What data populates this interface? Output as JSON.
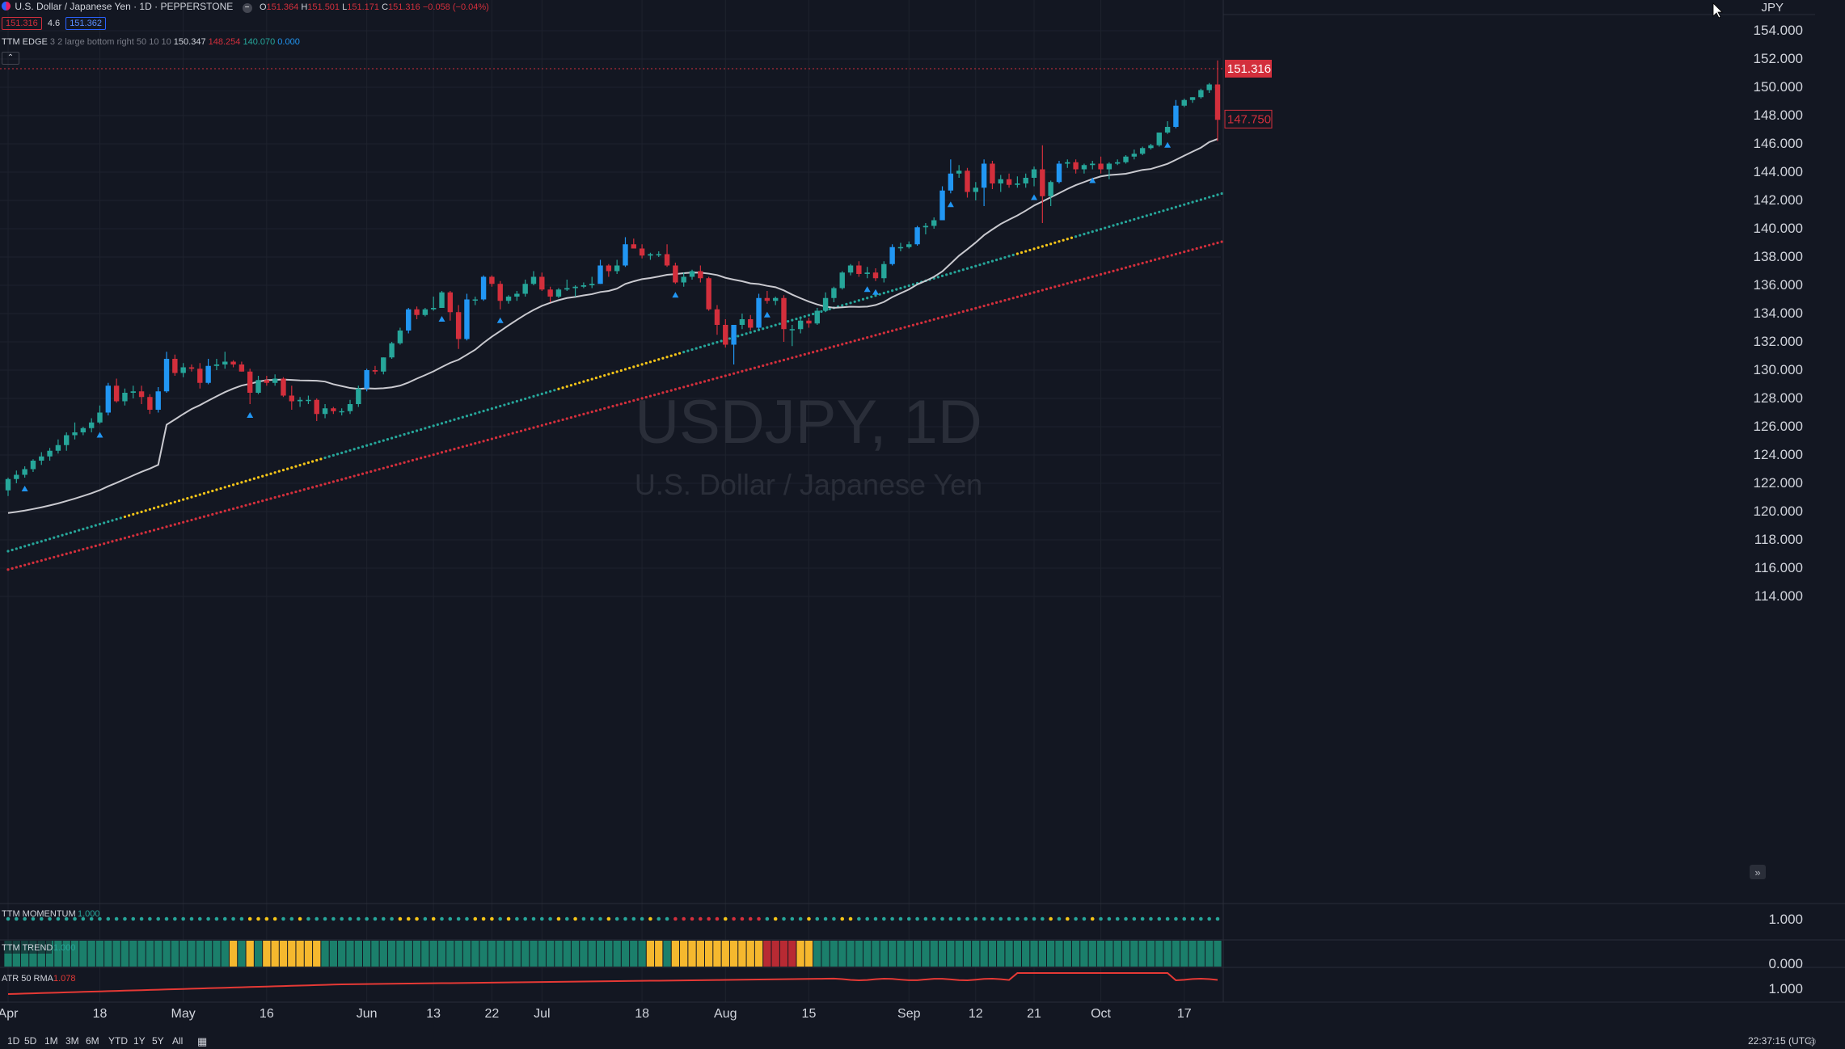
{
  "header": {
    "symbol_title": "U.S. Dollar / Japanese Yen · 1D · PEPPERSTONE",
    "ohlc": {
      "o_label": "O",
      "o": "151.364",
      "h_label": "H",
      "h": "151.501",
      "l_label": "L",
      "l": "151.171",
      "c_label": "C",
      "c": "151.316",
      "change": "−0.058 (−0.04%)"
    },
    "bid": "151.316",
    "spread": "4.6",
    "ask": "151.362",
    "edge_name": "TTM EDGE",
    "edge_params": "3 2 large bottom right 50 10 10",
    "edge_values": [
      "150.347",
      "148.254",
      "140.070",
      "0.000"
    ]
  },
  "watermark": {
    "ticker": "USDJPY, 1D",
    "name": "U.S. Dollar / Japanese Yen"
  },
  "currency": "JPY",
  "price_axis": {
    "ticks": [
      "154.000",
      "152.000",
      "150.000",
      "148.000",
      "146.000",
      "144.000",
      "142.000",
      "140.000",
      "138.000",
      "136.000",
      "134.000",
      "132.000",
      "130.000",
      "128.000",
      "126.000",
      "124.000",
      "122.000",
      "120.000",
      "118.000",
      "116.000",
      "114.000"
    ],
    "last_price": "151.316",
    "second_price": "147.750"
  },
  "indicators": {
    "momentum": {
      "name": "TTM MOMENTUM",
      "value": "1.000",
      "axis": "1.000"
    },
    "trend": {
      "name": "TTM TREND",
      "value": "1.000",
      "axis": "0.000"
    },
    "atr": {
      "name": "ATR 50 RMA",
      "value": "1.078",
      "axis": "1.000"
    }
  },
  "time_axis": [
    "Apr",
    "18",
    "May",
    "16",
    "Jun",
    "13",
    "22",
    "Jul",
    "18",
    "Aug",
    "15",
    "Sep",
    "12",
    "21",
    "Oct",
    "17"
  ],
  "bottom_bar": {
    "timeframes": [
      "1D",
      "5D",
      "1M",
      "3M",
      "6M",
      "YTD",
      "1Y",
      "5Y",
      "All"
    ],
    "clock": "22:37:15 (UTC)"
  },
  "colors": {
    "bg": "#131722",
    "up": "#26a69a",
    "down": "#d32f3c",
    "blue": "#2196f3",
    "yellow": "#f5c518",
    "ma": "#c9c9cf"
  },
  "chart_data": {
    "type": "candlestick",
    "symbol": "USDJPY",
    "ylim": [
      113,
      155.5
    ],
    "points": [
      {
        "d": "Apr 1",
        "o": 121.5,
        "h": 122.4,
        "l": 121.1,
        "c": 122.3
      },
      {
        "d": "Apr 4",
        "o": 122.3,
        "h": 122.9,
        "l": 122.0,
        "c": 122.6
      },
      {
        "d": "Apr 5",
        "o": 122.6,
        "h": 123.2,
        "l": 122.4,
        "c": 123.0
      },
      {
        "d": "Apr 6",
        "o": 123.0,
        "h": 123.7,
        "l": 122.8,
        "c": 123.6
      },
      {
        "d": "Apr 7",
        "o": 123.6,
        "h": 124.2,
        "l": 123.3,
        "c": 123.9
      },
      {
        "d": "Apr 8",
        "o": 123.9,
        "h": 124.5,
        "l": 123.6,
        "c": 124.3
      },
      {
        "d": "Apr 11",
        "o": 124.3,
        "h": 125.1,
        "l": 124.1,
        "c": 124.7
      },
      {
        "d": "Apr 12",
        "o": 124.7,
        "h": 125.6,
        "l": 124.3,
        "c": 125.4
      },
      {
        "d": "Apr 13",
        "o": 125.4,
        "h": 126.3,
        "l": 125.1,
        "c": 125.6
      },
      {
        "d": "Apr 14",
        "o": 125.6,
        "h": 126.0,
        "l": 125.4,
        "c": 125.9
      },
      {
        "d": "Apr 15",
        "o": 125.9,
        "h": 126.6,
        "l": 125.6,
        "c": 126.3
      },
      {
        "d": "Apr 18",
        "o": 126.3,
        "h": 127.5,
        "l": 126.2,
        "c": 127.0
      },
      {
        "d": "Apr 19",
        "o": 127.0,
        "h": 129.1,
        "l": 126.8,
        "c": 128.9
      },
      {
        "d": "Apr 20",
        "o": 128.9,
        "h": 129.4,
        "l": 127.7,
        "c": 127.8
      },
      {
        "d": "Apr 21",
        "o": 127.8,
        "h": 128.7,
        "l": 127.5,
        "c": 128.4
      },
      {
        "d": "Apr 22",
        "o": 128.4,
        "h": 128.9,
        "l": 128.0,
        "c": 128.5
      },
      {
        "d": "Apr 25",
        "o": 128.5,
        "h": 128.9,
        "l": 127.6,
        "c": 128.1
      },
      {
        "d": "Apr 26",
        "o": 128.1,
        "h": 128.3,
        "l": 126.9,
        "c": 127.2
      },
      {
        "d": "Apr 27",
        "o": 127.2,
        "h": 128.8,
        "l": 127.0,
        "c": 128.5
      },
      {
        "d": "Apr 28",
        "o": 128.5,
        "h": 131.3,
        "l": 128.4,
        "c": 130.8
      },
      {
        "d": "Apr 29",
        "o": 130.8,
        "h": 131.1,
        "l": 129.6,
        "c": 129.8
      },
      {
        "d": "May 2",
        "o": 129.8,
        "h": 130.5,
        "l": 129.5,
        "c": 130.2
      },
      {
        "d": "May 3",
        "o": 130.2,
        "h": 130.4,
        "l": 129.9,
        "c": 130.1
      },
      {
        "d": "May 4",
        "o": 130.1,
        "h": 130.5,
        "l": 128.7,
        "c": 129.1
      },
      {
        "d": "May 5",
        "o": 129.1,
        "h": 130.8,
        "l": 129.0,
        "c": 130.3
      },
      {
        "d": "May 6",
        "o": 130.3,
        "h": 130.8,
        "l": 130.0,
        "c": 130.4
      },
      {
        "d": "May 9",
        "o": 130.4,
        "h": 131.3,
        "l": 130.1,
        "c": 130.6
      },
      {
        "d": "May 10",
        "o": 130.6,
        "h": 130.7,
        "l": 130.2,
        "c": 130.4
      },
      {
        "d": "May 11",
        "o": 130.4,
        "h": 130.6,
        "l": 129.9,
        "c": 129.9
      },
      {
        "d": "May 12",
        "o": 129.9,
        "h": 130.1,
        "l": 127.6,
        "c": 128.4
      },
      {
        "d": "May 13",
        "o": 128.4,
        "h": 129.6,
        "l": 128.3,
        "c": 129.3
      },
      {
        "d": "May 16",
        "o": 129.3,
        "h": 129.6,
        "l": 128.9,
        "c": 129.1
      },
      {
        "d": "May 17",
        "o": 129.1,
        "h": 129.7,
        "l": 128.9,
        "c": 129.4
      },
      {
        "d": "May 18",
        "o": 129.4,
        "h": 129.5,
        "l": 128.1,
        "c": 128.2
      },
      {
        "d": "May 19",
        "o": 128.2,
        "h": 128.9,
        "l": 127.2,
        "c": 127.8
      },
      {
        "d": "May 20",
        "o": 127.8,
        "h": 128.1,
        "l": 127.4,
        "c": 127.9
      },
      {
        "d": "May 23",
        "o": 127.9,
        "h": 128.2,
        "l": 127.6,
        "c": 127.9
      },
      {
        "d": "May 24",
        "o": 127.9,
        "h": 128.0,
        "l": 126.4,
        "c": 126.9
      },
      {
        "d": "May 25",
        "o": 126.9,
        "h": 127.6,
        "l": 126.6,
        "c": 127.3
      },
      {
        "d": "May 26",
        "o": 127.3,
        "h": 127.4,
        "l": 126.9,
        "c": 127.1
      },
      {
        "d": "May 27",
        "o": 127.1,
        "h": 127.3,
        "l": 126.8,
        "c": 127.1
      },
      {
        "d": "May 30",
        "o": 127.1,
        "h": 127.9,
        "l": 126.9,
        "c": 127.6
      },
      {
        "d": "May 31",
        "o": 127.6,
        "h": 128.9,
        "l": 127.4,
        "c": 128.7
      },
      {
        "d": "Jun 1",
        "o": 128.7,
        "h": 130.1,
        "l": 128.5,
        "c": 130.0
      },
      {
        "d": "Jun 2",
        "o": 130.0,
        "h": 130.3,
        "l": 129.7,
        "c": 129.9
      },
      {
        "d": "Jun 3",
        "o": 129.9,
        "h": 130.9,
        "l": 129.7,
        "c": 130.9
      },
      {
        "d": "Jun 6",
        "o": 130.9,
        "h": 132.0,
        "l": 130.8,
        "c": 131.9
      },
      {
        "d": "Jun 7",
        "o": 131.9,
        "h": 133.0,
        "l": 131.8,
        "c": 132.8
      },
      {
        "d": "Jun 8",
        "o": 132.8,
        "h": 134.4,
        "l": 132.6,
        "c": 134.3
      },
      {
        "d": "Jun 9",
        "o": 134.3,
        "h": 134.5,
        "l": 133.6,
        "c": 133.9
      },
      {
        "d": "Jun 10",
        "o": 133.9,
        "h": 134.4,
        "l": 133.8,
        "c": 134.3
      },
      {
        "d": "Jun 13",
        "o": 134.3,
        "h": 135.2,
        "l": 134.2,
        "c": 134.4
      },
      {
        "d": "Jun 14",
        "o": 134.4,
        "h": 135.6,
        "l": 134.4,
        "c": 135.5
      },
      {
        "d": "Jun 15",
        "o": 135.5,
        "h": 135.6,
        "l": 133.5,
        "c": 134.1
      },
      {
        "d": "Jun 16",
        "o": 134.1,
        "h": 134.6,
        "l": 131.5,
        "c": 132.2
      },
      {
        "d": "Jun 17",
        "o": 132.2,
        "h": 135.4,
        "l": 132.1,
        "c": 135.0
      },
      {
        "d": "Jun 20",
        "o": 135.0,
        "h": 135.2,
        "l": 134.6,
        "c": 135.0
      },
      {
        "d": "Jun 21",
        "o": 135.0,
        "h": 136.7,
        "l": 134.9,
        "c": 136.6
      },
      {
        "d": "Jun 22",
        "o": 136.6,
        "h": 136.7,
        "l": 135.9,
        "c": 136.1
      },
      {
        "d": "Jun 23",
        "o": 136.1,
        "h": 136.3,
        "l": 134.3,
        "c": 134.9
      },
      {
        "d": "Jun 24",
        "o": 134.9,
        "h": 135.3,
        "l": 134.7,
        "c": 135.2
      },
      {
        "d": "Jun 27",
        "o": 135.2,
        "h": 135.6,
        "l": 134.9,
        "c": 135.4
      },
      {
        "d": "Jun 28",
        "o": 135.4,
        "h": 136.4,
        "l": 135.2,
        "c": 136.1
      },
      {
        "d": "Jun 29",
        "o": 136.1,
        "h": 137.0,
        "l": 136.0,
        "c": 136.6
      },
      {
        "d": "Jun 30",
        "o": 136.6,
        "h": 136.9,
        "l": 135.6,
        "c": 135.7
      },
      {
        "d": "Jul 1",
        "o": 135.7,
        "h": 135.9,
        "l": 134.8,
        "c": 135.2
      },
      {
        "d": "Jul 4",
        "o": 135.2,
        "h": 135.8,
        "l": 135.1,
        "c": 135.7
      },
      {
        "d": "Jul 5",
        "o": 135.7,
        "h": 136.4,
        "l": 135.6,
        "c": 135.8
      },
      {
        "d": "Jul 6",
        "o": 135.8,
        "h": 136.0,
        "l": 135.2,
        "c": 135.9
      },
      {
        "d": "Jul 7",
        "o": 135.9,
        "h": 136.2,
        "l": 135.8,
        "c": 136.0
      },
      {
        "d": "Jul 8",
        "o": 136.0,
        "h": 136.6,
        "l": 135.8,
        "c": 136.1
      },
      {
        "d": "Jul 11",
        "o": 136.1,
        "h": 137.8,
        "l": 136.1,
        "c": 137.4
      },
      {
        "d": "Jul 12",
        "o": 137.4,
        "h": 137.5,
        "l": 136.6,
        "c": 137.0
      },
      {
        "d": "Jul 13",
        "o": 137.0,
        "h": 137.8,
        "l": 136.8,
        "c": 137.4
      },
      {
        "d": "Jul 14",
        "o": 137.4,
        "h": 139.4,
        "l": 137.3,
        "c": 138.9
      },
      {
        "d": "Jul 15",
        "o": 138.9,
        "h": 139.3,
        "l": 138.6,
        "c": 138.6
      },
      {
        "d": "Jul 18",
        "o": 138.6,
        "h": 138.9,
        "l": 137.9,
        "c": 138.1
      },
      {
        "d": "Jul 19",
        "o": 138.1,
        "h": 138.3,
        "l": 137.8,
        "c": 138.2
      },
      {
        "d": "Jul 20",
        "o": 138.2,
        "h": 138.4,
        "l": 138.0,
        "c": 138.2
      },
      {
        "d": "Jul 21",
        "o": 138.2,
        "h": 138.9,
        "l": 137.3,
        "c": 137.4
      },
      {
        "d": "Jul 22",
        "o": 137.4,
        "h": 137.6,
        "l": 136.1,
        "c": 136.2
      },
      {
        "d": "Jul 25",
        "o": 136.2,
        "h": 136.9,
        "l": 135.9,
        "c": 136.6
      },
      {
        "d": "Jul 26",
        "o": 136.6,
        "h": 137.1,
        "l": 136.4,
        "c": 137.0
      },
      {
        "d": "Jul 27",
        "o": 137.0,
        "h": 137.4,
        "l": 136.2,
        "c": 136.5
      },
      {
        "d": "Jul 28",
        "o": 136.5,
        "h": 136.6,
        "l": 134.2,
        "c": 134.3
      },
      {
        "d": "Jul 29",
        "o": 134.3,
        "h": 134.6,
        "l": 132.5,
        "c": 133.2
      },
      {
        "d": "Aug 1",
        "o": 133.2,
        "h": 133.6,
        "l": 131.6,
        "c": 131.8
      },
      {
        "d": "Aug 2",
        "o": 131.8,
        "h": 133.2,
        "l": 130.4,
        "c": 133.2
      },
      {
        "d": "Aug 3",
        "o": 133.2,
        "h": 134.0,
        "l": 132.9,
        "c": 133.6
      },
      {
        "d": "Aug 4",
        "o": 133.6,
        "h": 133.9,
        "l": 132.8,
        "c": 133.0
      },
      {
        "d": "Aug 5",
        "o": 133.0,
        "h": 135.4,
        "l": 132.9,
        "c": 135.1
      },
      {
        "d": "Aug 8",
        "o": 135.1,
        "h": 135.6,
        "l": 134.7,
        "c": 134.9
      },
      {
        "d": "Aug 9",
        "o": 134.9,
        "h": 135.2,
        "l": 134.6,
        "c": 135.1
      },
      {
        "d": "Aug 10",
        "o": 135.1,
        "h": 135.3,
        "l": 132.0,
        "c": 132.9
      },
      {
        "d": "Aug 11",
        "o": 132.9,
        "h": 133.2,
        "l": 131.7,
        "c": 132.9
      },
      {
        "d": "Aug 12",
        "o": 132.9,
        "h": 133.8,
        "l": 132.6,
        "c": 133.5
      },
      {
        "d": "Aug 15",
        "o": 133.5,
        "h": 133.7,
        "l": 133.0,
        "c": 133.3
      },
      {
        "d": "Aug 16",
        "o": 133.3,
        "h": 134.4,
        "l": 133.2,
        "c": 134.2
      },
      {
        "d": "Aug 17",
        "o": 134.2,
        "h": 135.5,
        "l": 134.1,
        "c": 135.1
      },
      {
        "d": "Aug 18",
        "o": 135.1,
        "h": 135.9,
        "l": 134.8,
        "c": 135.8
      },
      {
        "d": "Aug 19",
        "o": 135.8,
        "h": 137.0,
        "l": 135.7,
        "c": 136.9
      },
      {
        "d": "Aug 22",
        "o": 136.9,
        "h": 137.5,
        "l": 136.7,
        "c": 137.4
      },
      {
        "d": "Aug 23",
        "o": 137.4,
        "h": 137.7,
        "l": 136.6,
        "c": 136.8
      },
      {
        "d": "Aug 24",
        "o": 136.8,
        "h": 137.3,
        "l": 136.5,
        "c": 136.9
      },
      {
        "d": "Aug 25",
        "o": 136.9,
        "h": 137.2,
        "l": 136.3,
        "c": 136.5
      },
      {
        "d": "Aug 26",
        "o": 136.5,
        "h": 137.7,
        "l": 136.2,
        "c": 137.5
      },
      {
        "d": "Aug 29",
        "o": 137.5,
        "h": 138.9,
        "l": 137.4,
        "c": 138.7
      },
      {
        "d": "Aug 30",
        "o": 138.7,
        "h": 139.0,
        "l": 138.4,
        "c": 138.7
      },
      {
        "d": "Aug 31",
        "o": 138.7,
        "h": 139.1,
        "l": 138.6,
        "c": 138.9
      },
      {
        "d": "Sep 1",
        "o": 138.9,
        "h": 140.2,
        "l": 138.8,
        "c": 140.1
      },
      {
        "d": "Sep 2",
        "o": 140.1,
        "h": 140.4,
        "l": 139.6,
        "c": 140.2
      },
      {
        "d": "Sep 5",
        "o": 140.2,
        "h": 140.8,
        "l": 140.0,
        "c": 140.6
      },
      {
        "d": "Sep 6",
        "o": 140.6,
        "h": 143.0,
        "l": 140.6,
        "c": 142.7
      },
      {
        "d": "Sep 7",
        "o": 142.7,
        "h": 144.9,
        "l": 142.5,
        "c": 143.9
      },
      {
        "d": "Sep 8",
        "o": 143.9,
        "h": 144.5,
        "l": 143.6,
        "c": 144.1
      },
      {
        "d": "Sep 9",
        "o": 144.1,
        "h": 144.3,
        "l": 142.2,
        "c": 142.6
      },
      {
        "d": "Sep 12",
        "o": 142.6,
        "h": 143.3,
        "l": 142.0,
        "c": 142.9
      },
      {
        "d": "Sep 13",
        "o": 142.9,
        "h": 144.9,
        "l": 141.6,
        "c": 144.6
      },
      {
        "d": "Sep 14",
        "o": 144.6,
        "h": 144.8,
        "l": 142.8,
        "c": 143.2
      },
      {
        "d": "Sep 15",
        "o": 143.2,
        "h": 143.8,
        "l": 142.6,
        "c": 143.5
      },
      {
        "d": "Sep 16",
        "o": 143.5,
        "h": 143.9,
        "l": 142.9,
        "c": 143.1
      },
      {
        "d": "Sep 19",
        "o": 143.1,
        "h": 143.7,
        "l": 142.9,
        "c": 143.2
      },
      {
        "d": "Sep 20",
        "o": 143.2,
        "h": 143.9,
        "l": 142.9,
        "c": 143.6
      },
      {
        "d": "Sep 21",
        "o": 143.6,
        "h": 144.4,
        "l": 143.0,
        "c": 144.2
      },
      {
        "d": "Sep 22",
        "o": 144.2,
        "h": 145.9,
        "l": 140.4,
        "c": 142.3
      },
      {
        "d": "Sep 23",
        "o": 142.3,
        "h": 143.4,
        "l": 141.6,
        "c": 143.3
      },
      {
        "d": "Sep 26",
        "o": 143.3,
        "h": 144.8,
        "l": 143.2,
        "c": 144.6
      },
      {
        "d": "Sep 27",
        "o": 144.6,
        "h": 144.9,
        "l": 144.3,
        "c": 144.7
      },
      {
        "d": "Sep 28",
        "o": 144.7,
        "h": 144.9,
        "l": 143.9,
        "c": 144.2
      },
      {
        "d": "Sep 29",
        "o": 144.2,
        "h": 144.6,
        "l": 143.9,
        "c": 144.5
      },
      {
        "d": "Sep 30",
        "o": 144.5,
        "h": 144.8,
        "l": 144.2,
        "c": 144.6
      },
      {
        "d": "Oct 3",
        "o": 144.6,
        "h": 145.1,
        "l": 143.9,
        "c": 144.2
      },
      {
        "d": "Oct 4",
        "o": 144.2,
        "h": 144.7,
        "l": 143.5,
        "c": 144.6
      },
      {
        "d": "Oct 5",
        "o": 144.6,
        "h": 144.9,
        "l": 144.5,
        "c": 144.7
      },
      {
        "d": "Oct 6",
        "o": 144.7,
        "h": 145.2,
        "l": 144.6,
        "c": 145.1
      },
      {
        "d": "Oct 7",
        "o": 145.1,
        "h": 145.6,
        "l": 144.9,
        "c": 145.3
      },
      {
        "d": "Oct 10",
        "o": 145.3,
        "h": 145.8,
        "l": 145.2,
        "c": 145.7
      },
      {
        "d": "Oct 11",
        "o": 145.7,
        "h": 146.0,
        "l": 145.6,
        "c": 145.9
      },
      {
        "d": "Oct 12",
        "o": 145.9,
        "h": 146.8,
        "l": 145.8,
        "c": 146.8
      },
      {
        "d": "Oct 13",
        "o": 146.8,
        "h": 147.6,
        "l": 146.7,
        "c": 147.2
      },
      {
        "d": "Oct 14",
        "o": 147.2,
        "h": 149.1,
        "l": 147.1,
        "c": 148.7
      },
      {
        "d": "Oct 17",
        "o": 148.7,
        "h": 149.2,
        "l": 148.6,
        "c": 149.1
      },
      {
        "d": "Oct 18",
        "o": 149.1,
        "h": 149.3,
        "l": 148.9,
        "c": 149.3
      },
      {
        "d": "Oct 19",
        "o": 149.3,
        "h": 149.9,
        "l": 149.2,
        "c": 149.8
      },
      {
        "d": "Oct 20",
        "o": 149.8,
        "h": 150.3,
        "l": 149.6,
        "c": 150.2
      },
      {
        "d": "Oct 21",
        "o": 150.2,
        "h": 151.9,
        "l": 146.2,
        "c": 147.7
      }
    ]
  }
}
